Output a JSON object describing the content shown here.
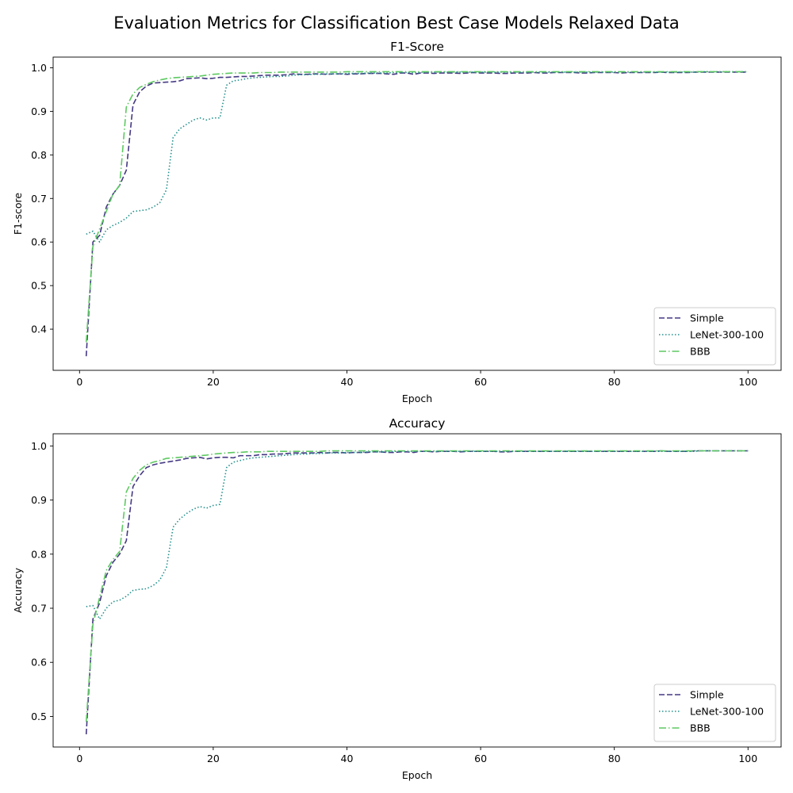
{
  "figure": {
    "title": "Evaluation Metrics for Classification Best Case Models Relaxed Data"
  },
  "chart_data": [
    {
      "type": "line",
      "title": "F1-Score",
      "xlabel": "Epoch",
      "ylabel": "F1-score",
      "xlim": [
        -3.95,
        104.95
      ],
      "ylim": [
        0.3055,
        1.0245
      ],
      "xticks": [
        0,
        20,
        40,
        60,
        80,
        100
      ],
      "yticks": [
        0.4,
        0.5,
        0.6,
        0.7,
        0.8,
        0.9,
        1.0
      ],
      "grid": false,
      "legend": "lower-right",
      "x": [
        1,
        2,
        3,
        4,
        5,
        6,
        7,
        8,
        9,
        10,
        11,
        12,
        13,
        14,
        15,
        16,
        17,
        18,
        19,
        20,
        21,
        22,
        23,
        24,
        25,
        26,
        27,
        28,
        29,
        30,
        31,
        32,
        33,
        34,
        35,
        36,
        37,
        38,
        39,
        40,
        41,
        42,
        43,
        44,
        45,
        46,
        47,
        48,
        49,
        50,
        51,
        52,
        53,
        54,
        55,
        56,
        57,
        58,
        59,
        60,
        61,
        62,
        63,
        64,
        65,
        66,
        67,
        68,
        69,
        70,
        71,
        72,
        73,
        74,
        75,
        76,
        77,
        78,
        79,
        80,
        81,
        82,
        83,
        84,
        85,
        86,
        87,
        88,
        89,
        90,
        91,
        92,
        93,
        94,
        95,
        96,
        97,
        98,
        99,
        100
      ],
      "series": [
        {
          "name": "Simple",
          "color": "#443983",
          "dash": "dashed",
          "values": [
            0.338,
            0.6,
            0.615,
            0.68,
            0.71,
            0.73,
            0.765,
            0.915,
            0.945,
            0.958,
            0.965,
            0.966,
            0.967,
            0.968,
            0.97,
            0.975,
            0.976,
            0.977,
            0.975,
            0.976,
            0.978,
            0.978,
            0.979,
            0.98,
            0.98,
            0.981,
            0.982,
            0.983,
            0.983,
            0.983,
            0.984,
            0.986,
            0.985,
            0.985,
            0.986,
            0.986,
            0.985,
            0.986,
            0.986,
            0.985,
            0.986,
            0.986,
            0.987,
            0.987,
            0.987,
            0.986,
            0.985,
            0.988,
            0.988,
            0.985,
            0.988,
            0.988,
            0.987,
            0.988,
            0.988,
            0.988,
            0.987,
            0.988,
            0.989,
            0.988,
            0.988,
            0.988,
            0.987,
            0.987,
            0.988,
            0.988,
            0.988,
            0.989,
            0.988,
            0.988,
            0.989,
            0.989,
            0.989,
            0.989,
            0.988,
            0.988,
            0.989,
            0.989,
            0.989,
            0.989,
            0.988,
            0.989,
            0.989,
            0.989,
            0.989,
            0.989,
            0.99,
            0.989,
            0.989,
            0.989,
            0.989,
            0.99,
            0.99,
            0.99,
            0.99,
            0.99,
            0.99,
            0.99,
            0.99,
            0.99
          ]
        },
        {
          "name": "LeNet-300-100",
          "color": "#21918c",
          "dash": "dotted",
          "values": [
            0.618,
            0.625,
            0.6,
            0.628,
            0.638,
            0.645,
            0.655,
            0.67,
            0.672,
            0.674,
            0.68,
            0.69,
            0.72,
            0.84,
            0.86,
            0.87,
            0.88,
            0.885,
            0.88,
            0.885,
            0.885,
            0.96,
            0.97,
            0.972,
            0.975,
            0.977,
            0.978,
            0.979,
            0.98,
            0.98,
            0.981,
            0.983,
            0.984,
            0.984,
            0.985,
            0.985,
            0.986,
            0.986,
            0.986,
            0.987,
            0.987,
            0.987,
            0.988,
            0.988,
            0.988,
            0.988,
            0.989,
            0.989,
            0.989,
            0.989,
            0.989,
            0.99,
            0.99,
            0.99,
            0.99,
            0.99,
            0.99,
            0.99,
            0.99,
            0.99,
            0.99,
            0.99,
            0.99,
            0.99,
            0.99,
            0.99,
            0.99,
            0.99,
            0.99,
            0.99,
            0.99,
            0.99,
            0.99,
            0.99,
            0.99,
            0.99,
            0.99,
            0.99,
            0.99,
            0.99,
            0.99,
            0.99,
            0.99,
            0.99,
            0.99,
            0.99,
            0.99,
            0.99,
            0.99,
            0.99,
            0.99,
            0.99,
            0.991,
            0.991,
            0.991,
            0.991,
            0.991,
            0.991,
            0.991,
            0.991
          ]
        },
        {
          "name": "BBB",
          "color": "#5ec962",
          "dash": "dashdot",
          "values": [
            0.37,
            0.59,
            0.63,
            0.67,
            0.71,
            0.73,
            0.91,
            0.94,
            0.955,
            0.962,
            0.968,
            0.972,
            0.975,
            0.977,
            0.978,
            0.979,
            0.98,
            0.981,
            0.983,
            0.985,
            0.986,
            0.987,
            0.988,
            0.988,
            0.988,
            0.988,
            0.989,
            0.989,
            0.989,
            0.99,
            0.99,
            0.99,
            0.99,
            0.99,
            0.99,
            0.99,
            0.99,
            0.99,
            0.99,
            0.991,
            0.991,
            0.991,
            0.991,
            0.991,
            0.991,
            0.991,
            0.991,
            0.991,
            0.991,
            0.991,
            0.991,
            0.991,
            0.991,
            0.991,
            0.991,
            0.991,
            0.991,
            0.991,
            0.991,
            0.991,
            0.991,
            0.991,
            0.991,
            0.991,
            0.991,
            0.991,
            0.991,
            0.991,
            0.991,
            0.991,
            0.991,
            0.991,
            0.991,
            0.991,
            0.991,
            0.991,
            0.991,
            0.991,
            0.991,
            0.991,
            0.991,
            0.991,
            0.991,
            0.991,
            0.991,
            0.991,
            0.991,
            0.991,
            0.991,
            0.991,
            0.991,
            0.991,
            0.991,
            0.991,
            0.991,
            0.991,
            0.991,
            0.991,
            0.991,
            0.991
          ]
        }
      ]
    },
    {
      "type": "line",
      "title": "Accuracy",
      "xlabel": "Epoch",
      "ylabel": "Accuracy",
      "xlim": [
        -3.95,
        104.95
      ],
      "ylim": [
        0.4435,
        1.0225
      ],
      "xticks": [
        0,
        20,
        40,
        60,
        80,
        100
      ],
      "yticks": [
        0.5,
        0.6,
        0.7,
        0.8,
        0.9,
        1.0
      ],
      "grid": false,
      "legend": "lower-right",
      "x": [
        1,
        2,
        3,
        4,
        5,
        6,
        7,
        8,
        9,
        10,
        11,
        12,
        13,
        14,
        15,
        16,
        17,
        18,
        19,
        20,
        21,
        22,
        23,
        24,
        25,
        26,
        27,
        28,
        29,
        30,
        31,
        32,
        33,
        34,
        35,
        36,
        37,
        38,
        39,
        40,
        41,
        42,
        43,
        44,
        45,
        46,
        47,
        48,
        49,
        50,
        51,
        52,
        53,
        54,
        55,
        56,
        57,
        58,
        59,
        60,
        61,
        62,
        63,
        64,
        65,
        66,
        67,
        68,
        69,
        70,
        71,
        72,
        73,
        74,
        75,
        76,
        77,
        78,
        79,
        80,
        81,
        82,
        83,
        84,
        85,
        86,
        87,
        88,
        89,
        90,
        91,
        92,
        93,
        94,
        95,
        96,
        97,
        98,
        99,
        100
      ],
      "series": [
        {
          "name": "Simple",
          "color": "#443983",
          "dash": "dashed",
          "values": [
            0.467,
            0.68,
            0.71,
            0.76,
            0.785,
            0.8,
            0.825,
            0.925,
            0.945,
            0.96,
            0.965,
            0.968,
            0.97,
            0.972,
            0.974,
            0.977,
            0.978,
            0.979,
            0.976,
            0.978,
            0.979,
            0.979,
            0.978,
            0.982,
            0.982,
            0.982,
            0.984,
            0.984,
            0.985,
            0.985,
            0.986,
            0.987,
            0.987,
            0.987,
            0.987,
            0.988,
            0.987,
            0.988,
            0.988,
            0.987,
            0.988,
            0.988,
            0.988,
            0.989,
            0.989,
            0.988,
            0.988,
            0.989,
            0.989,
            0.988,
            0.99,
            0.99,
            0.989,
            0.99,
            0.99,
            0.99,
            0.989,
            0.99,
            0.99,
            0.99,
            0.99,
            0.99,
            0.989,
            0.989,
            0.99,
            0.99,
            0.99,
            0.99,
            0.99,
            0.99,
            0.99,
            0.99,
            0.99,
            0.99,
            0.99,
            0.99,
            0.99,
            0.99,
            0.99,
            0.99,
            0.99,
            0.99,
            0.99,
            0.99,
            0.99,
            0.99,
            0.991,
            0.99,
            0.99,
            0.99,
            0.99,
            0.991,
            0.991,
            0.991,
            0.991,
            0.991,
            0.991,
            0.991,
            0.991,
            0.991
          ]
        },
        {
          "name": "LeNet-300-100",
          "color": "#21918c",
          "dash": "dotted",
          "values": [
            0.703,
            0.705,
            0.68,
            0.7,
            0.712,
            0.715,
            0.722,
            0.733,
            0.735,
            0.736,
            0.742,
            0.752,
            0.775,
            0.85,
            0.865,
            0.875,
            0.883,
            0.888,
            0.885,
            0.89,
            0.892,
            0.96,
            0.97,
            0.973,
            0.976,
            0.978,
            0.979,
            0.98,
            0.981,
            0.982,
            0.983,
            0.984,
            0.985,
            0.985,
            0.986,
            0.986,
            0.987,
            0.987,
            0.987,
            0.988,
            0.988,
            0.988,
            0.989,
            0.989,
            0.989,
            0.989,
            0.99,
            0.99,
            0.99,
            0.99,
            0.99,
            0.99,
            0.99,
            0.99,
            0.99,
            0.99,
            0.99,
            0.99,
            0.99,
            0.99,
            0.99,
            0.99,
            0.99,
            0.99,
            0.99,
            0.99,
            0.99,
            0.99,
            0.99,
            0.99,
            0.99,
            0.99,
            0.99,
            0.99,
            0.99,
            0.99,
            0.99,
            0.99,
            0.99,
            0.99,
            0.99,
            0.99,
            0.99,
            0.99,
            0.99,
            0.99,
            0.99,
            0.99,
            0.99,
            0.99,
            0.99,
            0.99,
            0.991,
            0.991,
            0.991,
            0.991,
            0.991,
            0.991,
            0.991,
            0.991
          ]
        },
        {
          "name": "BBB",
          "color": "#5ec962",
          "dash": "dashdot",
          "values": [
            0.49,
            0.67,
            0.72,
            0.77,
            0.79,
            0.805,
            0.915,
            0.94,
            0.955,
            0.965,
            0.97,
            0.973,
            0.977,
            0.978,
            0.979,
            0.98,
            0.981,
            0.982,
            0.983,
            0.985,
            0.986,
            0.987,
            0.988,
            0.988,
            0.989,
            0.989,
            0.989,
            0.99,
            0.99,
            0.99,
            0.99,
            0.99,
            0.99,
            0.99,
            0.99,
            0.99,
            0.991,
            0.991,
            0.991,
            0.991,
            0.991,
            0.991,
            0.991,
            0.991,
            0.991,
            0.991,
            0.991,
            0.991,
            0.991,
            0.991,
            0.991,
            0.991,
            0.991,
            0.991,
            0.991,
            0.991,
            0.991,
            0.991,
            0.991,
            0.991,
            0.991,
            0.991,
            0.991,
            0.991,
            0.991,
            0.991,
            0.991,
            0.991,
            0.991,
            0.991,
            0.991,
            0.991,
            0.991,
            0.991,
            0.991,
            0.991,
            0.991,
            0.991,
            0.991,
            0.991,
            0.991,
            0.991,
            0.991,
            0.991,
            0.991,
            0.991,
            0.991,
            0.991,
            0.991,
            0.991,
            0.991,
            0.991,
            0.991,
            0.991,
            0.991,
            0.991,
            0.991,
            0.991,
            0.991,
            0.991
          ]
        }
      ]
    }
  ]
}
